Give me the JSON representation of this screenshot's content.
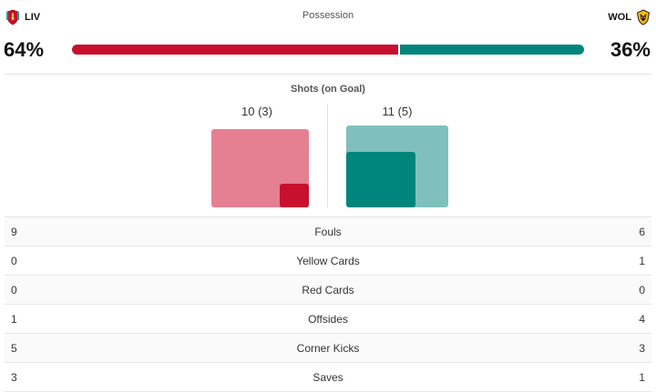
{
  "home": {
    "abbr": "LIV",
    "possession": "64%",
    "color": "#c8102e",
    "light_color": "#e58092",
    "crest_icon": "liverpool-crest-icon"
  },
  "away": {
    "abbr": "WOL",
    "possession": "36%",
    "color": "#00857c",
    "light_color": "#80c0bc",
    "crest_icon": "wolves-crest-icon"
  },
  "possession": {
    "title": "Possession",
    "home_fraction": 0.64,
    "away_fraction": 0.36
  },
  "shots": {
    "title": "Shots (on Goal)",
    "home_label": "10 (3)",
    "away_label": "11 (5)",
    "home_total": 10,
    "home_on_goal": 3,
    "away_total": 11,
    "away_on_goal": 5
  },
  "stats": [
    {
      "label": "Fouls",
      "home": "9",
      "away": "6"
    },
    {
      "label": "Yellow Cards",
      "home": "0",
      "away": "1"
    },
    {
      "label": "Red Cards",
      "home": "0",
      "away": "0"
    },
    {
      "label": "Offsides",
      "home": "1",
      "away": "4"
    },
    {
      "label": "Corner Kicks",
      "home": "5",
      "away": "3"
    },
    {
      "label": "Saves",
      "home": "3",
      "away": "1"
    }
  ]
}
